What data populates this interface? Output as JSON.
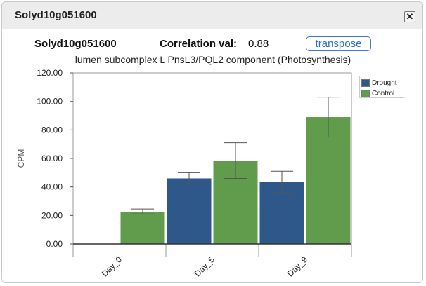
{
  "dialog": {
    "title": "Solyd10g051600",
    "close_symbol": "✕",
    "close_icon": "close-icon"
  },
  "header": {
    "gene_link": "Solyd10g051600",
    "correlation_label": "Correlation val:",
    "correlation_value": "0.88",
    "transpose_label": "transpose"
  },
  "chart_data": {
    "type": "bar",
    "title": "lumen subcomplex L PnsL3/PQL2 component (Photosynthesis)",
    "xlabel": "",
    "ylabel": "CPM",
    "categories": [
      "Day_0",
      "Day_5",
      "Day_9"
    ],
    "ylim": [
      0,
      120
    ],
    "yticks": [
      "0.00",
      "20.00",
      "40.00",
      "60.00",
      "80.00",
      "100.00",
      "120.00"
    ],
    "grid": false,
    "legend_position": "top-right",
    "series": [
      {
        "name": "Drought",
        "color": "#2e578a",
        "values": [
          0,
          46,
          43.5
        ],
        "error_low": [
          0,
          42,
          36
        ],
        "error_high": [
          0,
          50,
          51
        ]
      },
      {
        "name": "Control",
        "color": "#609c4b",
        "values": [
          22.5,
          58.5,
          89
        ],
        "error_low": [
          21,
          46,
          75
        ],
        "error_high": [
          24.5,
          71,
          103
        ]
      }
    ]
  }
}
